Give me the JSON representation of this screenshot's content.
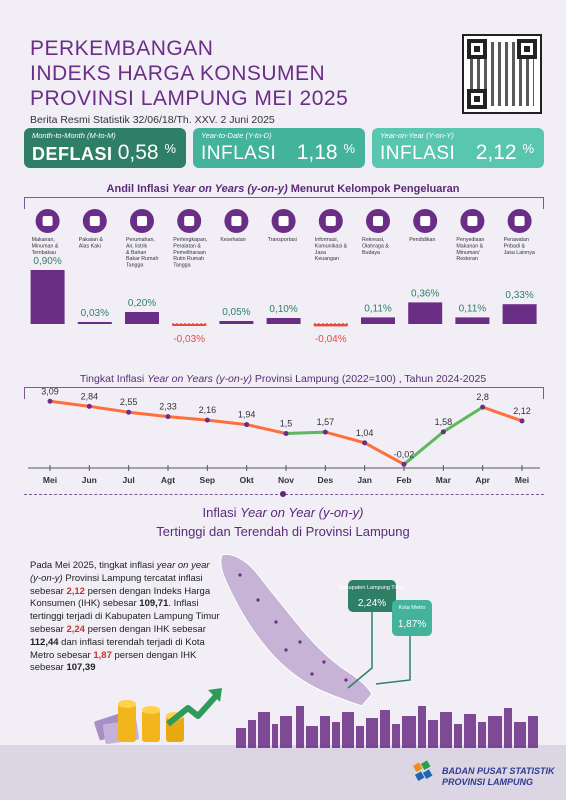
{
  "header": {
    "title_lines": [
      "PERKEMBANGAN",
      "INDEKS HARGA KONSUMEN",
      "PROVINSI LAMPUNG MEI 2025"
    ],
    "subtitle": "Berita Resmi Statistik 32/06/18/Th. XXV. 2 Juni 2025"
  },
  "cards": [
    {
      "label": "Month-to-Month (M-to-M)",
      "kind": "DEFLASI",
      "value": "0,58",
      "pct": "%"
    },
    {
      "label": "Year-to-Date (Y-to-D)",
      "kind": "INFLASI",
      "value": "1,18",
      "pct": "%"
    },
    {
      "label": "Year-on-Year (Y-on-Y)",
      "kind": "INFLASI",
      "value": "2,12",
      "pct": "%"
    }
  ],
  "section1": {
    "pre": "Andil Inflasi ",
    "italic": "Year on Years (y-on-y)",
    "post": " Menurut Kelompok Pengeluaran"
  },
  "section2": {
    "pre": "Tingkat Inflasi ",
    "italic": "Year on Years (y-on-y)",
    "post": " Provinsi Lampung (2022=100) , Tahun 2024-2025"
  },
  "section3": {
    "line1_pre": "Inflasi ",
    "line1_italic": "Year on Year (y-on-y)",
    "line2": "Tertinggi dan Terendah di Provinsi Lampung"
  },
  "paragraph": {
    "p1": "Pada Mei 2025, tingkat inflasi ",
    "p2": "year on year (y-on-y)",
    "p3": " Provinsi Lampung tercatat inflasi sebesar ",
    "v1": "2,12",
    "p4": " persen dengan Indeks Harga Konsumen (IHK) sebesar ",
    "v2": "109,71",
    "p5": ". Inflasi tertinggi terjadi di Kabupaten Lampung Timur sebesar ",
    "v3": "2,24",
    "p6": " persen dengan IHK sebesar ",
    "v4": "112,44",
    "p7": " dan inflasi terendah terjadi di Kota Metro sebesar ",
    "v5": "1,87",
    "p8": " persen dengan IHK sebesar ",
    "v6": "107,39"
  },
  "map_callouts": [
    {
      "name": "Kabupaten Lampung Timur",
      "value": "2,24%"
    },
    {
      "name": "Kota Metro",
      "value": "1,87%"
    }
  ],
  "footer": {
    "org_line1": "BADAN PUSAT STATISTIK",
    "org_line2": "PROVINSI LAMPUNG"
  },
  "colors": {
    "purple": "#6a2e86",
    "teal_dark": "#2f7f67",
    "teal": "#43b39b",
    "green": "#5cb85c",
    "orange": "#ff6f3c",
    "negative": "#e74c3c"
  },
  "chart_data": [
    {
      "type": "bar",
      "categories": [
        "Makanan, Minuman & Tembakau",
        "Pakaian & Alas Kaki",
        "Perumahan, Air, listrik & Bahan Bakar Rumah Tangga",
        "Perlengkapan, Peralatan & Pemeliharaan Rutin Rumah Tangga",
        "Kesehatan",
        "Transportasi",
        "Informasi, Komunikasi & Jasa Keuangan",
        "Rekreasi, Olahraga & Budaya",
        "Pendidikan",
        "Penyediaan Makanan & Minuman/ Restoran",
        "Perawatan Pribadi & Jasa Lainnya"
      ],
      "icons": [
        "food-icon",
        "clothing-icon",
        "house-icon",
        "household-equipment-icon",
        "health-kit-icon",
        "airplane-icon",
        "smartphone-icon",
        "sports-icon",
        "graduation-cap-icon",
        "chef-icon",
        "tools-icon"
      ],
      "values": [
        0.9,
        0.03,
        0.2,
        -0.03,
        0.05,
        0.1,
        -0.04,
        0.11,
        0.36,
        0.11,
        0.33
      ],
      "labels": [
        "0,90%",
        "0,03%",
        "0,20%",
        "-0,03%",
        "0,05%",
        "0,10%",
        "-0,04%",
        "0,11%",
        "0,36%",
        "0,11%",
        "0,33%"
      ]
    },
    {
      "type": "line",
      "x": [
        "Mei",
        "Jun",
        "Jul",
        "Agt",
        "Sep",
        "Okt",
        "Nov",
        "Des",
        "Jan",
        "Feb",
        "Mar",
        "Apr",
        "Mei"
      ],
      "values": [
        3.09,
        2.84,
        2.55,
        2.33,
        2.16,
        1.94,
        1.5,
        1.57,
        1.04,
        -0.02,
        1.58,
        2.8,
        2.12
      ],
      "labels": [
        "3,09",
        "2,84",
        "2,55",
        "2,33",
        "2,16",
        "1,94",
        "1,5",
        "1,57",
        "1,04",
        "-0,02",
        "1,58",
        "2,8",
        "2,12"
      ],
      "ylim": [
        -0.3,
        3.3
      ]
    }
  ]
}
